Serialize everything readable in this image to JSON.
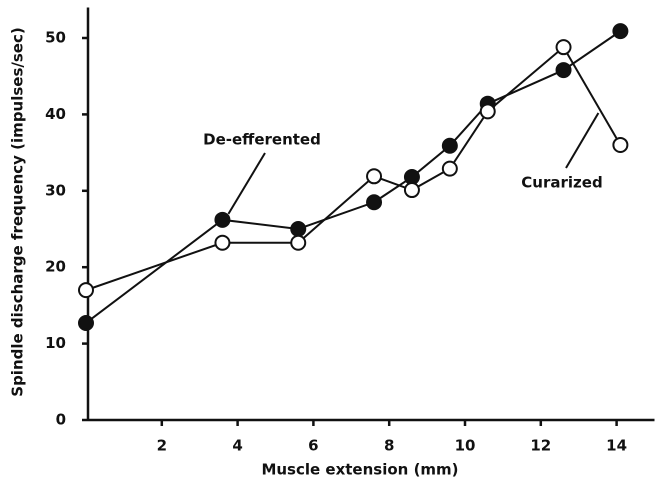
{
  "chart_data": {
    "type": "line",
    "x_label": "Muscle extension (mm)",
    "y_label": "Spindle discharge frequency (impulses/sec)",
    "xlim": [
      0,
      15
    ],
    "xticks": [
      2,
      4,
      6,
      8,
      10,
      12,
      14
    ],
    "ylim": [
      0,
      54
    ],
    "yticks": [
      0,
      10,
      20,
      30,
      40,
      50
    ],
    "grid": false,
    "series": [
      {
        "name": "De-efferented",
        "color": "#111111",
        "marker": "filled",
        "x": [
          0,
          3.6,
          5.6,
          7.6,
          8.6,
          9.6,
          10.6,
          12.6,
          14.1
        ],
        "values": [
          12.7,
          26.2,
          25,
          28.5,
          31.8,
          35.9,
          41.4,
          45.8,
          50.9
        ]
      },
      {
        "name": "Curarized",
        "color": "#111111",
        "marker": "open",
        "x": [
          0,
          3.6,
          5.6,
          7.6,
          8.6,
          9.6,
          10.6,
          12.6,
          14.1
        ],
        "values": [
          17,
          23.2,
          23.2,
          31.9,
          30.1,
          32.9,
          40.4,
          48.8,
          36
        ]
      }
    ]
  }
}
